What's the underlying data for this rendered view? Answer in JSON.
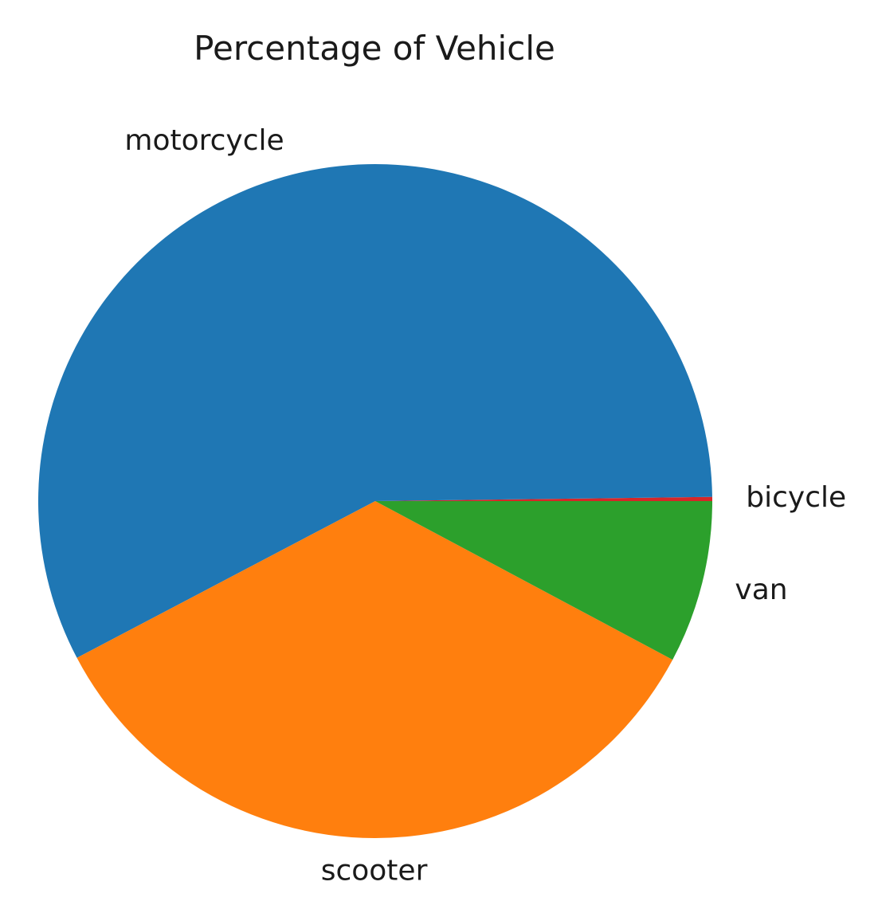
{
  "chart_data": {
    "type": "pie",
    "title": "Percentage of Vehicle",
    "start_angle_deg": 0,
    "direction": "counterclockwise",
    "slices": [
      {
        "label": "bicycle",
        "value": 0.2,
        "color": "#d62728"
      },
      {
        "label": "motorcycle",
        "value": 57.5,
        "color": "#1f77b4"
      },
      {
        "label": "scooter",
        "value": 34.5,
        "color": "#ff7f0e"
      },
      {
        "label": "van",
        "value": 7.8,
        "color": "#2ca02c"
      }
    ]
  }
}
